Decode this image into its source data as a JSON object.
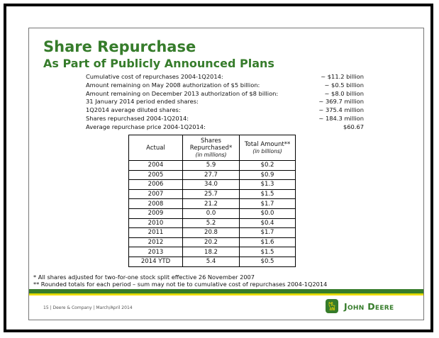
{
  "title": "Share Repurchase",
  "subtitle": "As Part of Publicly Announced Plans",
  "facts": [
    {
      "label": "Cumulative cost of repurchases 2004-1Q2014:",
      "value": "~  $11.2 billion"
    },
    {
      "label": "Amount remaining on May 2008 authorization of $5 billion:",
      "value": "~   $0.5 billion"
    },
    {
      "label": "Amount remaining on December 2013 authorization of $8 billion:",
      "value": "~   $8.0 billion"
    },
    {
      "label": "31 January 2014 period ended shares:",
      "value": "~  369.7 million"
    },
    {
      "label": "1Q2014 average diluted shares:",
      "value": "~  375.4 million"
    },
    {
      "label": "Shares repurchased 2004-1Q2014:",
      "value": "~  184.3 million"
    },
    {
      "label": "Average repurchase price 2004-1Q2014:",
      "value": "$60.67"
    }
  ],
  "table": {
    "headers": [
      {
        "label": "Actual",
        "unit": ""
      },
      {
        "label": "Shares Repurchased*",
        "unit": "(in millions)"
      },
      {
        "label": "Total Amount**",
        "unit": "(in billions)"
      }
    ],
    "rows": [
      [
        "2004",
        "5.9",
        "$0.2"
      ],
      [
        "2005",
        "27.7",
        "$0.9"
      ],
      [
        "2006",
        "34.0",
        "$1.3"
      ],
      [
        "2007",
        "25.7",
        "$1.5"
      ],
      [
        "2008",
        "21.2",
        "$1.7"
      ],
      [
        "2009",
        "0.0",
        "$0.0"
      ],
      [
        "2010",
        "5.2",
        "$0.4"
      ],
      [
        "2011",
        "20.8",
        "$1.7"
      ],
      [
        "2012",
        "20.2",
        "$1.6"
      ],
      [
        "2013",
        "18.2",
        "$1.5"
      ],
      [
        "2014 YTD",
        "5.4",
        "$0.5"
      ]
    ]
  },
  "notes": [
    "* All shares adjusted for two-for-one stock split effective 26 November 2007",
    "** Rounded totals for each period – sum may not tie to cumulative cost of repurchases 2004-1Q2014"
  ],
  "footer": "15  |  Deere & Company  |  March/April 2014",
  "logo": {
    "text": "John Deere",
    "icon": "leaping-deer-icon"
  },
  "colors": {
    "brand_green": "#367c2b",
    "brand_yellow": "#ffde00"
  }
}
